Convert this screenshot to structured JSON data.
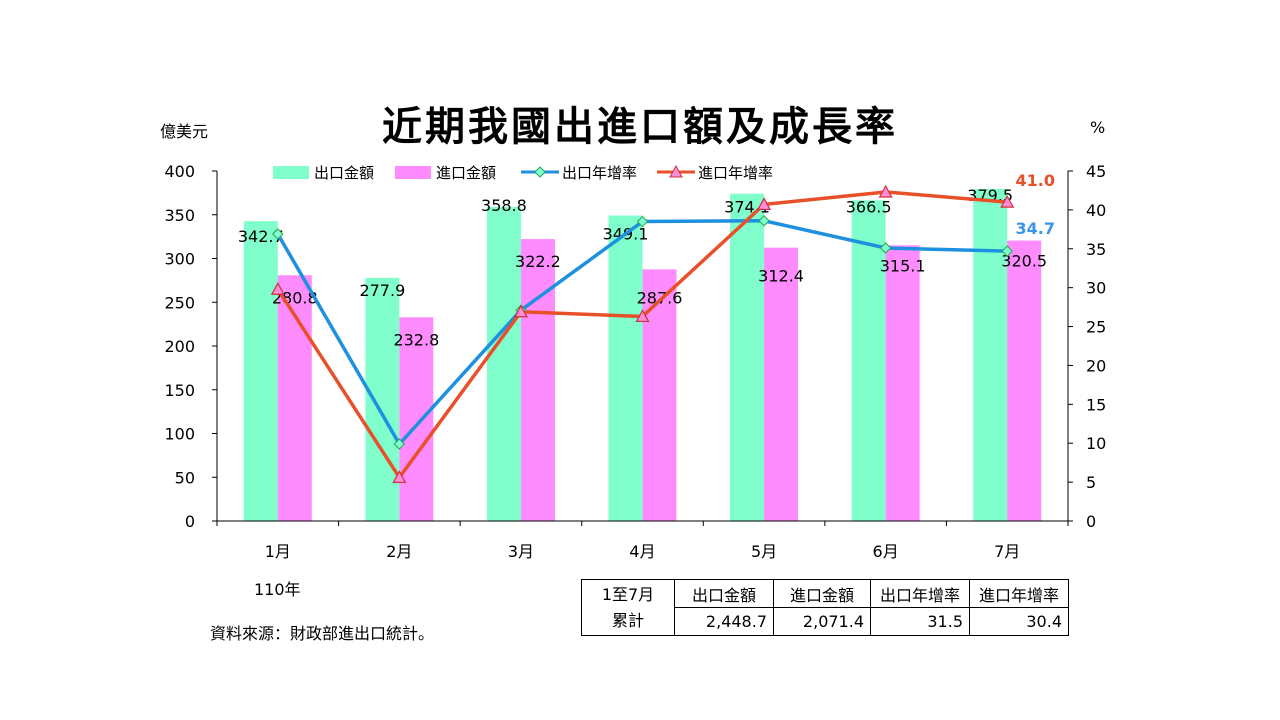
{
  "title": "近期我國出進口額及成長率",
  "left_unit": "億美元",
  "right_unit": "%",
  "year_label": "110年",
  "source": "資料來源：財政部進出口統計。",
  "summary_table": {
    "row_head_line1": "1至7月",
    "row_head_line2": "累計",
    "headers": [
      "出口金額",
      "進口金額",
      "出口年增率",
      "進口年增率"
    ],
    "values": [
      "2,448.7",
      "2,071.4",
      "31.5",
      "30.4"
    ]
  },
  "colors": {
    "export_bar": "#80FFCC",
    "import_bar": "#FF8CFF",
    "export_growth_line": "#1E90E0",
    "import_growth_line": "#E8502A",
    "export_growth_label": "#3A96E6",
    "import_growth_label": "#E8502A"
  },
  "chart_data": {
    "type": "bar",
    "categories": [
      "1月",
      "2月",
      "3月",
      "4月",
      "5月",
      "6月",
      "7月"
    ],
    "series": [
      {
        "name": "出口金額",
        "type": "bar",
        "axis": "left",
        "values": [
          342.7,
          277.9,
          358.8,
          349.1,
          374.1,
          366.5,
          379.5
        ]
      },
      {
        "name": "進口金額",
        "type": "bar",
        "axis": "left",
        "values": [
          280.8,
          232.8,
          322.2,
          287.6,
          312.4,
          315.1,
          320.5
        ]
      },
      {
        "name": "出口年增率",
        "type": "line",
        "axis": "right",
        "values": [
          36.9,
          9.9,
          27.1,
          38.5,
          38.6,
          35.1,
          34.7
        ]
      },
      {
        "name": "進口年增率",
        "type": "line",
        "axis": "right",
        "values": [
          29.8,
          5.6,
          26.9,
          26.3,
          40.7,
          42.3,
          41.0
        ]
      }
    ],
    "left_axis": {
      "min": 0,
      "max": 400,
      "ticks": [
        "0",
        "50",
        "100",
        "150",
        "200",
        "250",
        "300",
        "350",
        "400"
      ]
    },
    "right_axis": {
      "min": 0,
      "max": 45,
      "ticks": [
        "0",
        "5",
        "10",
        "15",
        "20",
        "25",
        "30",
        "35",
        "40",
        "45"
      ]
    },
    "last_point_labels": {
      "export_growth": "34.7",
      "import_growth": "41.0"
    },
    "legend_position": "top",
    "grid": false
  }
}
